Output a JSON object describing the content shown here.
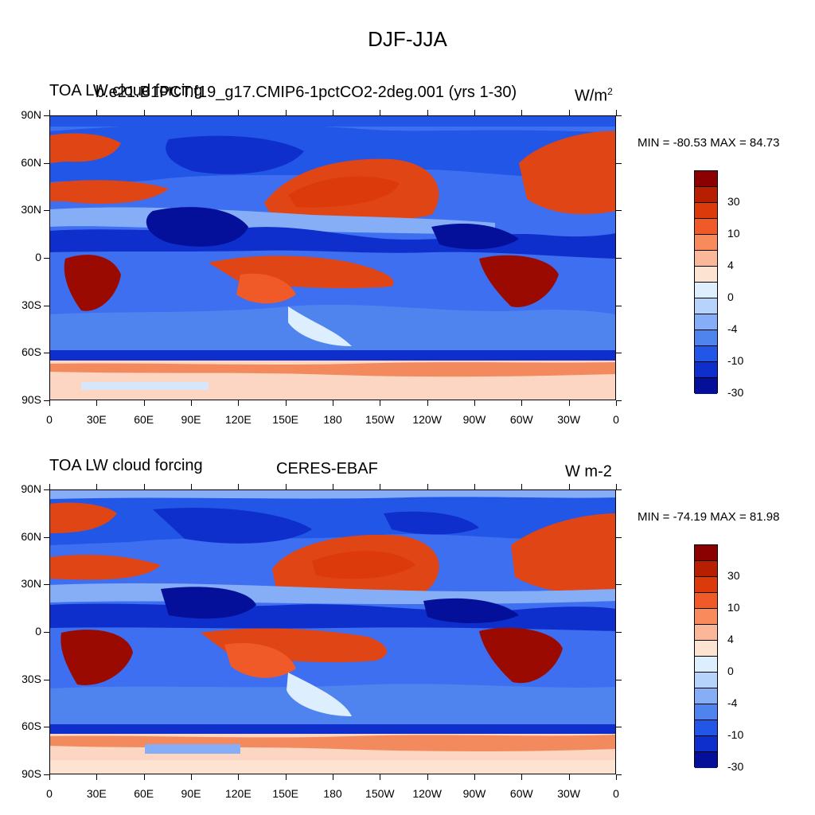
{
  "title": "DJF-JJA",
  "panels": [
    {
      "left_title": "TOA LW cloud forcing",
      "center_title": "b.e21.B1PCT.f19_g17.CMIP6-1pctCO2-2deg.001 (yrs 1-30)",
      "units": "W/m",
      "units_sup": "2",
      "minmax": "MIN = -80.53 MAX =  84.73"
    },
    {
      "left_title": "TOA LW cloud forcing",
      "center_title": "CERES-EBAF",
      "units": "W m-2",
      "units_sup": "",
      "minmax": "MIN = -74.19 MAX =  81.98"
    }
  ],
  "axes": {
    "y_ticks": [
      "90N",
      "60N",
      "30N",
      "0",
      "30S",
      "60S",
      "90S"
    ],
    "x_ticks": [
      "0",
      "30E",
      "60E",
      "90E",
      "120E",
      "150E",
      "180",
      "150W",
      "120W",
      "90W",
      "60W",
      "30W",
      "0"
    ]
  },
  "colorbar": {
    "labels": [
      "30",
      "10",
      "4",
      "0",
      "-4",
      "-10",
      "-30"
    ],
    "colors": [
      "#8b0000",
      "#b81e00",
      "#dc3a0a",
      "#f05a28",
      "#f88a5c",
      "#fbb898",
      "#fde3d2",
      "#dceeff",
      "#b6d4fb",
      "#86aef6",
      "#4f84ef",
      "#2156e6",
      "#0f2fcc",
      "#05109a"
    ]
  },
  "palette": {
    "deep_red": "#9b0a00",
    "red": "#e04516",
    "orange": "#f28a5e",
    "peach": "#fcd6c2",
    "pale_blue": "#d6e6fb",
    "light_blue": "#8cb3f5",
    "blue": "#3e6ff0",
    "dark_blue": "#0b2ec8",
    "navy": "#06148f"
  }
}
